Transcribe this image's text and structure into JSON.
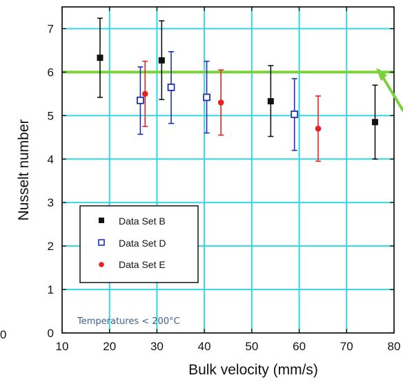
{
  "chart_data": {
    "type": "scatter",
    "title": "",
    "xlabel": "Bulk velocity (mm/s)",
    "ylabel": "Nusselt number",
    "xlim": [
      10,
      80
    ],
    "ylim": [
      0,
      7.5
    ],
    "xticks": [
      10,
      20,
      30,
      40,
      50,
      60,
      70,
      80
    ],
    "yticks": [
      0,
      1,
      2,
      3,
      4,
      5,
      6,
      7
    ],
    "x_tick_labels": [
      "10",
      "20",
      "30",
      "40",
      "50",
      "60",
      "70",
      "80"
    ],
    "y_tick_labels": [
      "0",
      "1",
      "2",
      "3",
      "4",
      "5",
      "6",
      "7"
    ],
    "grid": true,
    "grid_color": "#33d6dd",
    "legend_position": "bottom-left",
    "series": [
      {
        "name": "Data Set B",
        "marker": "filled-square",
        "color": "#111111",
        "points": [
          {
            "x": 18,
            "y": 6.33,
            "yerr_low": 5.42,
            "yerr_high": 7.24
          },
          {
            "x": 31,
            "y": 6.27,
            "yerr_low": 5.37,
            "yerr_high": 7.18
          },
          {
            "x": 54,
            "y": 5.33,
            "yerr_low": 4.52,
            "yerr_high": 6.15
          },
          {
            "x": 76,
            "y": 4.85,
            "yerr_low": 4.0,
            "yerr_high": 5.7
          }
        ]
      },
      {
        "name": "Data Set D",
        "marker": "open-square",
        "color": "#1f2fb3",
        "points": [
          {
            "x": 26.5,
            "y": 5.35,
            "yerr_low": 4.57,
            "yerr_high": 6.12
          },
          {
            "x": 33,
            "y": 5.65,
            "yerr_low": 4.82,
            "yerr_high": 6.47
          },
          {
            "x": 40.5,
            "y": 5.42,
            "yerr_low": 4.6,
            "yerr_high": 6.25
          },
          {
            "x": 59,
            "y": 5.03,
            "yerr_low": 4.2,
            "yerr_high": 5.85
          }
        ]
      },
      {
        "name": "Data Set E",
        "marker": "filled-circle",
        "color": "#e52222",
        "points": [
          {
            "x": 27.5,
            "y": 5.5,
            "yerr_low": 4.75,
            "yerr_high": 6.25
          },
          {
            "x": 43.5,
            "y": 5.3,
            "yerr_low": 4.55,
            "yerr_high": 6.05
          },
          {
            "x": 64,
            "y": 4.7,
            "yerr_low": 3.95,
            "yerr_high": 5.45
          }
        ]
      }
    ],
    "reference_line": {
      "y": 6.0,
      "color": "#7ad13a"
    },
    "arrow_color": "#7ad13a",
    "annotation": "Temperatures < 200°C"
  },
  "page_fragments": {
    "left_crop_label": "0"
  }
}
